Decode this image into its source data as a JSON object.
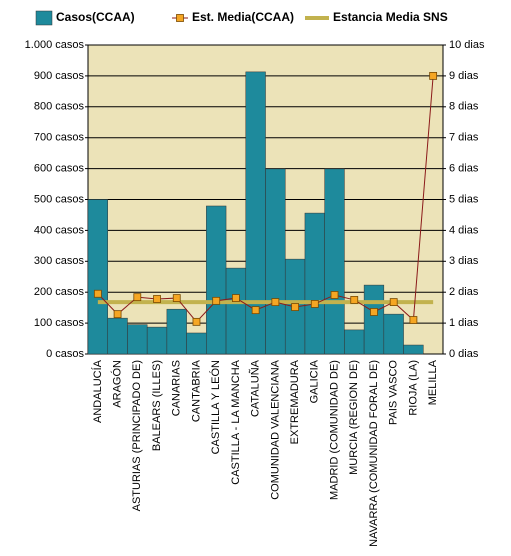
{
  "chart_data": {
    "type": "bar_line",
    "categories": [
      "ANDALUCÍA",
      "ARAGÓN",
      "ASTURIAS (PRINCIPADO DE)",
      "BALEARS (ILLES)",
      "CANARIAS",
      "CANTABRIA",
      "CASTILLA Y LEÓN",
      "CASTILLA - LA MANCHA",
      "CATALUÑA",
      "COMUNIDAD VALENCIANA",
      "EXTREMADURA",
      "GALICIA",
      "MADRID (COMUNIDAD DE)",
      "MURCIA (REGION DE)",
      "NAVARRA (COMUNIDAD FORAL DE)",
      "PAIS VASCO",
      "RIOJA (LA)",
      "MELILLA"
    ],
    "series": [
      {
        "name": "Casos(CCAA)",
        "color": "#1e8a9c",
        "kind": "bar",
        "values": [
          500,
          116,
          95,
          87,
          145,
          68,
          479,
          278,
          913,
          599,
          307,
          456,
          599,
          78,
          223,
          129,
          29,
          0
        ]
      },
      {
        "name": "Est. Media(CCAA)",
        "color": "#8b1a1a",
        "marker_color": "#f5a623",
        "kind": "line",
        "axis": "y2",
        "values": [
          1.95,
          1.29,
          1.84,
          1.78,
          1.81,
          1.04,
          1.72,
          1.81,
          1.42,
          1.68,
          1.52,
          1.62,
          1.91,
          1.75,
          1.36,
          1.68,
          1.1,
          9.0
        ]
      },
      {
        "name": "Estancia Media SNS",
        "color": "#c2b24e",
        "kind": "reference",
        "axis": "y2",
        "value": 1.68
      }
    ],
    "ylim": [
      0,
      1000
    ],
    "yticks": [
      {
        "value": 0,
        "label": "0 casos"
      },
      {
        "value": 100,
        "label": "100 casos"
      },
      {
        "value": 200,
        "label": "200 casos"
      },
      {
        "value": 300,
        "label": "300 casos"
      },
      {
        "value": 400,
        "label": "400 casos"
      },
      {
        "value": 500,
        "label": "500 casos"
      },
      {
        "value": 600,
        "label": "600 casos"
      },
      {
        "value": 700,
        "label": "700 casos"
      },
      {
        "value": 800,
        "label": "800 casos"
      },
      {
        "value": 900,
        "label": "900 casos"
      },
      {
        "value": 1000,
        "label": "1.000 casos"
      }
    ],
    "y2lim": [
      0,
      10
    ],
    "y2ticks": [
      {
        "value": 0,
        "label": "0 dias"
      },
      {
        "value": 1,
        "label": "1 dias"
      },
      {
        "value": 2,
        "label": "2 dias"
      },
      {
        "value": 3,
        "label": "3 dias"
      },
      {
        "value": 4,
        "label": "4 dias"
      },
      {
        "value": 5,
        "label": "5 dias"
      },
      {
        "value": 6,
        "label": "6 dias"
      },
      {
        "value": 7,
        "label": "7 dias"
      },
      {
        "value": 8,
        "label": "8 dias"
      },
      {
        "value": 9,
        "label": "9 dias"
      },
      {
        "value": 10,
        "label": "10 dias"
      }
    ],
    "grid": true
  }
}
